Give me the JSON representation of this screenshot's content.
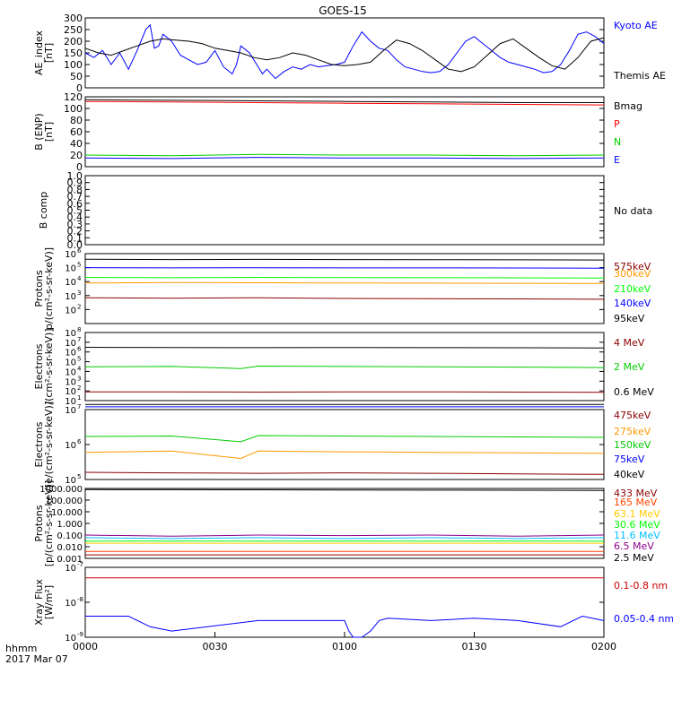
{
  "title": "GOES-15",
  "footer": {
    "hhmm": "hhmm",
    "date": "2017 Mar 07"
  },
  "x_ticks": [
    "0000",
    "0030",
    "0100",
    "0130",
    "0200"
  ],
  "chart_data": [
    {
      "type": "line",
      "ylabel_lines": [
        "AE_index",
        "[nT]"
      ],
      "ylim": [
        0,
        300
      ],
      "yticks": [
        "0",
        "50",
        "100",
        "150",
        "200",
        "250",
        "300"
      ],
      "x_minutes_range": [
        0,
        120
      ],
      "series": [
        {
          "name": "Kyoto AE",
          "color": "#0000ff",
          "x": [
            0,
            2,
            4,
            6,
            8,
            10,
            12,
            14,
            15,
            16,
            17,
            18,
            20,
            22,
            24,
            26,
            28,
            30,
            32,
            34,
            35,
            36,
            38,
            40,
            41,
            42,
            44,
            46,
            48,
            50,
            52,
            54,
            56,
            58,
            60,
            62,
            64,
            66,
            68,
            70,
            72,
            74,
            76,
            78,
            80,
            82,
            84,
            86,
            88,
            90,
            92,
            94,
            96,
            98,
            100,
            102,
            104,
            106,
            108,
            110,
            112,
            114,
            116,
            118,
            120
          ],
          "y": [
            150,
            130,
            160,
            100,
            150,
            80,
            160,
            250,
            270,
            170,
            180,
            230,
            200,
            140,
            120,
            100,
            110,
            160,
            90,
            60,
            100,
            180,
            150,
            90,
            60,
            80,
            40,
            70,
            90,
            80,
            100,
            90,
            95,
            100,
            110,
            180,
            240,
            200,
            170,
            160,
            120,
            90,
            80,
            70,
            65,
            70,
            100,
            150,
            200,
            220,
            190,
            160,
            130,
            110,
            100,
            90,
            80,
            65,
            70,
            100,
            160,
            230,
            240,
            220,
            190
          ]
        },
        {
          "name": "Themis AE",
          "color": "#000000",
          "x": [
            0,
            3,
            6,
            9,
            12,
            15,
            18,
            21,
            24,
            27,
            30,
            33,
            36,
            39,
            42,
            45,
            48,
            51,
            54,
            57,
            60,
            63,
            66,
            69,
            72,
            75,
            78,
            81,
            84,
            87,
            90,
            93,
            96,
            99,
            102,
            105,
            108,
            111,
            114,
            117,
            120
          ],
          "y": [
            170,
            150,
            140,
            160,
            180,
            200,
            210,
            205,
            200,
            190,
            170,
            160,
            150,
            130,
            120,
            130,
            150,
            140,
            120,
            100,
            95,
            100,
            110,
            160,
            205,
            190,
            160,
            120,
            80,
            70,
            90,
            140,
            190,
            210,
            170,
            130,
            95,
            80,
            130,
            200,
            215
          ]
        }
      ]
    },
    {
      "type": "line",
      "ylabel_lines": [
        "B (ENP)",
        "[nT]"
      ],
      "ylim": [
        0,
        120
      ],
      "yticks": [
        "0",
        "20",
        "40",
        "60",
        "80",
        "100",
        "120"
      ],
      "x_minutes_range": [
        0,
        120
      ],
      "series": [
        {
          "name": "Bmag",
          "color": "#000000",
          "x": [
            0,
            20,
            40,
            60,
            80,
            100,
            120
          ],
          "y": [
            115,
            114,
            113,
            112,
            111,
            110,
            110
          ]
        },
        {
          "name": "P",
          "color": "#ff0000",
          "x": [
            0,
            20,
            40,
            60,
            80,
            100,
            120
          ],
          "y": [
            112,
            111,
            110,
            109,
            108,
            107,
            106
          ]
        },
        {
          "name": "N",
          "color": "#00cc00",
          "x": [
            0,
            20,
            40,
            60,
            80,
            100,
            120
          ],
          "y": [
            20,
            19,
            21,
            20,
            20,
            19,
            20
          ]
        },
        {
          "name": "E",
          "color": "#0000ff",
          "x": [
            0,
            20,
            40,
            60,
            80,
            100,
            120
          ],
          "y": [
            15,
            14,
            16,
            15,
            15,
            14,
            15
          ]
        }
      ]
    },
    {
      "type": "line",
      "ylabel_lines": [
        "B comp"
      ],
      "ylim": [
        0,
        1
      ],
      "yticks": [
        "0.0",
        "0.1",
        "0.2",
        "0.3",
        "0.4",
        "0.5",
        "0.6",
        "0.7",
        "0.8",
        "0.9",
        "1.0"
      ],
      "x_minutes_range": [
        0,
        120
      ],
      "series": [],
      "legend_text": "No data"
    },
    {
      "type": "line",
      "ylabel_lines": [
        "Protons",
        "p/(cm²-s-sr-keV)]"
      ],
      "ylog": [
        1,
        6
      ],
      "yticks_exp": [
        2,
        3,
        4,
        5,
        6
      ],
      "x_minutes_range": [
        0,
        120
      ],
      "series": [
        {
          "name": "575keV",
          "color": "#8b0000",
          "x": [
            0,
            20,
            40,
            60,
            80,
            100,
            120
          ],
          "y": [
            700,
            650,
            700,
            620,
            600,
            580,
            550
          ]
        },
        {
          "name": "300keV",
          "color": "#ff9900",
          "x": [
            0,
            20,
            40,
            60,
            80,
            100,
            120
          ],
          "y": [
            8000,
            8500,
            8200,
            8000,
            7800,
            7500,
            7300
          ]
        },
        {
          "name": "210keV",
          "color": "#00ff00",
          "x": [
            0,
            20,
            40,
            60,
            80,
            100,
            120
          ],
          "y": [
            20000,
            19000,
            20000,
            19500,
            19000,
            18500,
            18000
          ]
        },
        {
          "name": "140keV",
          "color": "#0000ff",
          "x": [
            0,
            20,
            40,
            60,
            80,
            100,
            120
          ],
          "y": [
            100000,
            95000,
            98000,
            96000,
            95000,
            94000,
            92000
          ]
        },
        {
          "name": "95keV",
          "color": "#000000",
          "x": [
            0,
            20,
            40,
            60,
            80,
            100,
            120
          ],
          "y": [
            400000,
            380000,
            390000,
            380000,
            370000,
            360000,
            350000
          ]
        }
      ]
    },
    {
      "type": "line",
      "ylabel_lines": [
        "Electrons",
        "/(cm²-s-sr-keV)]"
      ],
      "ylog": [
        1,
        8
      ],
      "yticks_exp": [
        1,
        2,
        3,
        4,
        5,
        6,
        7,
        8
      ],
      "x_minutes_range": [
        0,
        120
      ],
      "series": [
        {
          "name": "4 MeV",
          "color": "#8b0000",
          "x": [
            0,
            20,
            40,
            60,
            80,
            100,
            120
          ],
          "y": [
            80,
            80,
            75,
            80,
            80,
            75,
            70
          ]
        },
        {
          "name": "2 MeV",
          "color": "#00cc00",
          "x": [
            0,
            20,
            36,
            40,
            60,
            80,
            100,
            120
          ],
          "y": [
            30000,
            32000,
            20000,
            35000,
            32000,
            30000,
            28000,
            25000
          ]
        },
        {
          "name": "0.6 MeV",
          "color": "#000000",
          "x": [
            0,
            20,
            40,
            60,
            80,
            100,
            120
          ],
          "y": [
            3000000,
            2900000,
            2800000,
            2900000,
            2800000,
            2700000,
            2600000
          ]
        }
      ]
    },
    {
      "type": "line",
      "ylabel_lines": [
        "Electrons",
        "[e/(cm²-s-sr-keV)]"
      ],
      "ylog": [
        5,
        7
      ],
      "yticks_exp": [
        5,
        6,
        7
      ],
      "x_minutes_range": [
        0,
        120
      ],
      "series": [
        {
          "name": "475keV",
          "color": "#8b0000",
          "x": [
            0,
            20,
            40,
            60,
            80,
            100,
            120
          ],
          "y": [
            160000,
            155000,
            150000,
            155000,
            150000,
            145000,
            140000
          ]
        },
        {
          "name": "275keV",
          "color": "#ff9900",
          "x": [
            0,
            20,
            36,
            40,
            60,
            80,
            100,
            120
          ],
          "y": [
            600000,
            650000,
            400000,
            650000,
            620000,
            600000,
            580000,
            560000
          ]
        },
        {
          "name": "150keV",
          "color": "#00cc00",
          "x": [
            0,
            20,
            36,
            40,
            60,
            80,
            100,
            120
          ],
          "y": [
            1700000,
            1750000,
            1200000,
            1800000,
            1750000,
            1700000,
            1650000,
            1600000
          ]
        },
        {
          "name": "75keV",
          "color": "#0000ff",
          "x": [
            0,
            120
          ],
          "y": [
            12000000,
            12000000
          ]
        },
        {
          "name": "40keV",
          "color": "#000000",
          "x": [
            0,
            120
          ],
          "y": [
            14000000,
            14000000
          ]
        }
      ]
    },
    {
      "type": "line",
      "ylabel_lines": [
        "Protons",
        "[p/(cm²-s-sr-keV)]"
      ],
      "ylog": [
        -3,
        3
      ],
      "yticks": [
        "0.001",
        "0.010",
        "0.100",
        "1.000",
        "10.000",
        "100.000",
        "1000.000"
      ],
      "x_minutes_range": [
        0,
        120
      ],
      "series": [
        {
          "name": "433 MeV",
          "color": "#8b0000",
          "x": [
            0,
            20,
            40,
            60,
            80,
            100,
            120
          ],
          "y": [
            0.002,
            0.002,
            0.002,
            0.002,
            0.002,
            0.002,
            0.002
          ]
        },
        {
          "name": "165 MeV",
          "color": "#ff4500",
          "x": [
            0,
            20,
            40,
            60,
            80,
            100,
            120
          ],
          "y": [
            0.004,
            0.004,
            0.004,
            0.004,
            0.004,
            0.004,
            0.004
          ]
        },
        {
          "name": "63.1 MeV",
          "color": "#ffcc00",
          "x": [
            0,
            20,
            40,
            60,
            80,
            100,
            120
          ],
          "y": [
            0.02,
            0.02,
            0.02,
            0.02,
            0.02,
            0.02,
            0.02
          ]
        },
        {
          "name": "30.6 MeV",
          "color": "#00ff00",
          "x": [
            0,
            20,
            40,
            60,
            80,
            100,
            120
          ],
          "y": [
            0.03,
            0.03,
            0.03,
            0.03,
            0.03,
            0.03,
            0.03
          ]
        },
        {
          "name": "11.6 MeV",
          "color": "#00bfff",
          "x": [
            0,
            20,
            40,
            60,
            80,
            100,
            120
          ],
          "y": [
            0.06,
            0.05,
            0.06,
            0.05,
            0.06,
            0.05,
            0.06
          ]
        },
        {
          "name": "6.5 MeV",
          "color": "#8b008b",
          "x": [
            0,
            20,
            40,
            60,
            80,
            100,
            120
          ],
          "y": [
            0.1,
            0.08,
            0.1,
            0.09,
            0.1,
            0.08,
            0.1
          ]
        },
        {
          "name": "2.5 MeV",
          "color": "#000000",
          "x": [
            0,
            20,
            40,
            60,
            80,
            100,
            120
          ],
          "y": [
            800,
            780,
            760,
            740,
            720,
            700,
            680
          ]
        }
      ]
    },
    {
      "type": "line",
      "ylabel_lines": [
        "Xray Flux",
        "[W/m²]"
      ],
      "ylog": [
        -9,
        -7
      ],
      "yticks_exp": [
        -9,
        -8,
        -7
      ],
      "x_minutes_range": [
        0,
        120
      ],
      "series": [
        {
          "name": "0.1-0.8 nm",
          "color": "#cc0000",
          "x": [
            0,
            20,
            40,
            60,
            80,
            100,
            120
          ],
          "y": [
            5e-08,
            5e-08,
            5e-08,
            5e-08,
            5e-08,
            5e-08,
            5e-08
          ]
        },
        {
          "name": "0.05-0.4 nm",
          "color": "#0000ff",
          "x": [
            0,
            10,
            15,
            20,
            40,
            60,
            61,
            62,
            64,
            66,
            68,
            70,
            80,
            90,
            100,
            110,
            115,
            120
          ],
          "y": [
            4e-09,
            4e-09,
            2e-09,
            1.5e-09,
            3e-09,
            3e-09,
            1.5e-09,
            1e-09,
            1e-09,
            1.5e-09,
            3e-09,
            3.5e-09,
            3e-09,
            3.5e-09,
            3e-09,
            2e-09,
            4e-09,
            3e-09
          ]
        }
      ]
    }
  ]
}
